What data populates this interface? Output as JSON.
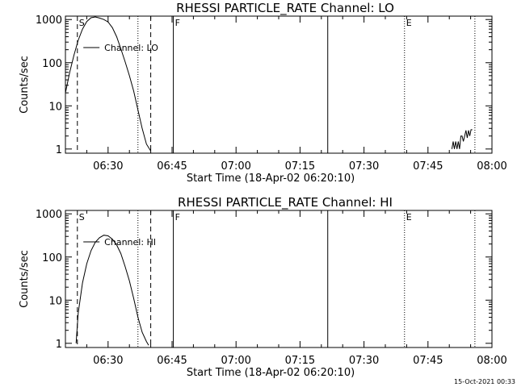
{
  "footer": {
    "timestamp": "15-Oct-2021 00:33"
  },
  "chart_data": [
    {
      "type": "line",
      "title": "RHESSI PARTICLE_RATE Channel: LO",
      "xlabel": "Start Time (18-Apr-02 06:20:10)",
      "ylabel": "Counts/sec",
      "y_scale": "log",
      "xlim_minutes": [
        0,
        100
      ],
      "ylim": [
        0.8,
        1200
      ],
      "x_ticks": [
        {
          "t": 10,
          "label": "06:30"
        },
        {
          "t": 25,
          "label": "06:45"
        },
        {
          "t": 40,
          "label": "07:00"
        },
        {
          "t": 55,
          "label": "07:15"
        },
        {
          "t": 70,
          "label": "07:30"
        },
        {
          "t": 85,
          "label": "07:45"
        },
        {
          "t": 100,
          "label": "08:00"
        }
      ],
      "y_ticks": [
        {
          "v": 1,
          "label": "1"
        },
        {
          "v": 10,
          "label": "10"
        },
        {
          "v": 100,
          "label": "100"
        },
        {
          "v": 1000,
          "label": "1000"
        }
      ],
      "legend": "Channel: LO",
      "markers": [
        {
          "t": 2.8,
          "style": "dashed",
          "label": "S"
        },
        {
          "t": 17,
          "style": "dotted",
          "label": ""
        },
        {
          "t": 20,
          "style": "dashed",
          "label": ""
        },
        {
          "t": 25.3,
          "style": "solid",
          "label": "F"
        },
        {
          "t": 61.5,
          "style": "solid",
          "label": ""
        },
        {
          "t": 79.5,
          "style": "dotted",
          "label": "E"
        },
        {
          "t": 96,
          "style": "dotted",
          "label": ""
        }
      ],
      "series": [
        {
          "x": [
            0,
            1,
            2,
            3,
            4,
            5,
            6,
            7,
            8,
            9,
            10,
            11,
            12,
            13,
            14,
            15,
            16,
            17,
            18,
            19,
            20
          ],
          "y": [
            20,
            60,
            150,
            330,
            600,
            900,
            1100,
            1150,
            1080,
            1000,
            880,
            650,
            400,
            210,
            105,
            50,
            22,
            8,
            3,
            1.3,
            0.9
          ]
        },
        {
          "x": [
            90.6,
            90.9,
            91.2,
            91.5,
            91.8,
            92.1,
            92.4,
            92.7,
            93.0,
            93.3,
            93.6,
            93.9,
            94.2,
            94.5,
            94.8,
            95.1,
            95.4
          ],
          "y": [
            1,
            1.5,
            1,
            1.5,
            1,
            1.5,
            1,
            2,
            2,
            1.5,
            2,
            2.7,
            1.8,
            2.7,
            2,
            2.8,
            2.8
          ]
        }
      ]
    },
    {
      "type": "line",
      "title": "RHESSI PARTICLE_RATE Channel: HI",
      "xlabel": "Start Time (18-Apr-02 06:20:10)",
      "ylabel": "Counts/sec",
      "y_scale": "log",
      "xlim_minutes": [
        0,
        100
      ],
      "ylim": [
        0.8,
        1200
      ],
      "x_ticks": [
        {
          "t": 10,
          "label": "06:30"
        },
        {
          "t": 25,
          "label": "06:45"
        },
        {
          "t": 40,
          "label": "07:00"
        },
        {
          "t": 55,
          "label": "07:15"
        },
        {
          "t": 70,
          "label": "07:30"
        },
        {
          "t": 85,
          "label": "07:45"
        },
        {
          "t": 100,
          "label": "08:00"
        }
      ],
      "y_ticks": [
        {
          "v": 1,
          "label": "1"
        },
        {
          "v": 10,
          "label": "10"
        },
        {
          "v": 100,
          "label": "100"
        },
        {
          "v": 1000,
          "label": "1000"
        }
      ],
      "legend": "Channel: HI",
      "markers": [
        {
          "t": 2.8,
          "style": "dashed",
          "label": "S"
        },
        {
          "t": 17,
          "style": "dotted",
          "label": ""
        },
        {
          "t": 20,
          "style": "dashed",
          "label": ""
        },
        {
          "t": 25.3,
          "style": "solid",
          "label": "F"
        },
        {
          "t": 61.5,
          "style": "solid",
          "label": ""
        },
        {
          "t": 79.5,
          "style": "dotted",
          "label": "E"
        },
        {
          "t": 96,
          "style": "dotted",
          "label": ""
        }
      ],
      "series": [
        {
          "x": [
            2.5,
            3,
            4,
            5,
            6,
            7,
            8,
            9,
            10,
            11,
            12,
            13,
            14,
            15,
            16,
            17,
            18,
            19,
            19.5
          ],
          "y": [
            1,
            5,
            25,
            70,
            140,
            220,
            280,
            320,
            310,
            260,
            190,
            120,
            60,
            28,
            11,
            4,
            1.8,
            1.1,
            0.9
          ]
        }
      ]
    }
  ]
}
